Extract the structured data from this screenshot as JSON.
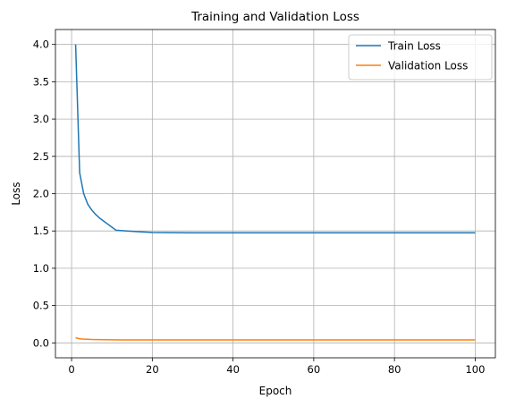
{
  "chart_data": {
    "type": "line",
    "title": "Training and Validation Loss",
    "xlabel": "Epoch",
    "ylabel": "Loss",
    "xlim": [
      -4,
      105
    ],
    "ylim": [
      -0.2,
      4.2
    ],
    "xticks": [
      0,
      20,
      40,
      60,
      80,
      100
    ],
    "xtick_labels": [
      "0",
      "20",
      "40",
      "60",
      "80",
      "100"
    ],
    "yticks": [
      0.0,
      0.5,
      1.0,
      1.5,
      2.0,
      2.5,
      3.0,
      3.5,
      4.0
    ],
    "ytick_labels": [
      "0.0",
      "0.5",
      "1.0",
      "1.5",
      "2.0",
      "2.5",
      "3.0",
      "3.5",
      "4.0"
    ],
    "grid": true,
    "legend_position": "top-right",
    "series": [
      {
        "name": "Train Loss",
        "color": "#1f77b4",
        "x": [
          1,
          2,
          3,
          4,
          5,
          6,
          7,
          8,
          9,
          10,
          11,
          15,
          20,
          30,
          40,
          50,
          60,
          70,
          80,
          90,
          100
        ],
        "y": [
          4.0,
          2.28,
          2.0,
          1.86,
          1.78,
          1.72,
          1.67,
          1.63,
          1.59,
          1.55,
          1.51,
          1.495,
          1.48,
          1.475,
          1.475,
          1.475,
          1.475,
          1.475,
          1.475,
          1.475,
          1.475
        ]
      },
      {
        "name": "Validation Loss",
        "color": "#ff7f0e",
        "x": [
          1,
          2,
          3,
          5,
          8,
          12,
          20,
          40,
          60,
          80,
          100
        ],
        "y": [
          0.07,
          0.055,
          0.05,
          0.045,
          0.042,
          0.04,
          0.04,
          0.04,
          0.04,
          0.04,
          0.04
        ]
      }
    ]
  }
}
